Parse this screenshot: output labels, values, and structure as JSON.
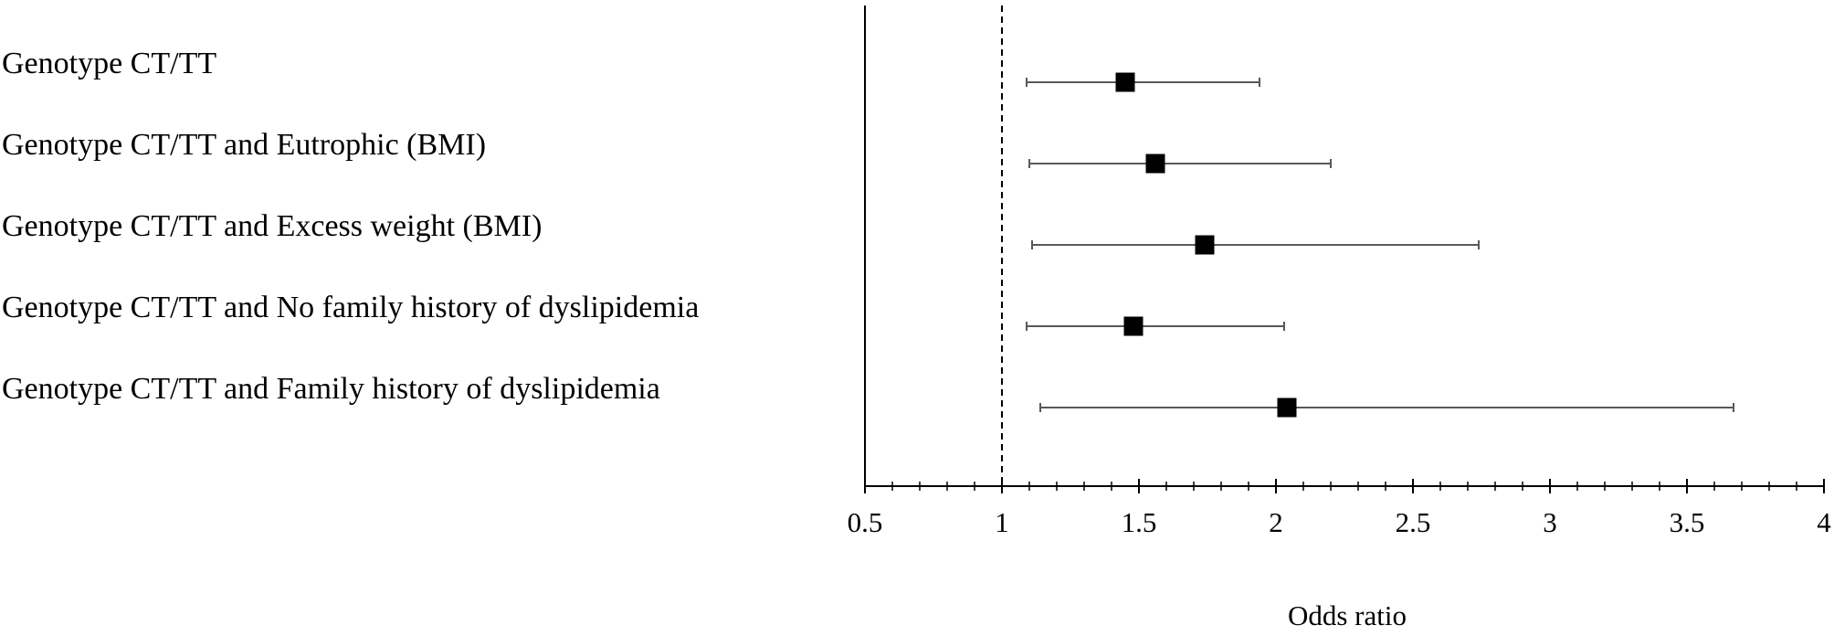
{
  "chart_data": {
    "type": "forest",
    "title": "",
    "xlabel": "Odds ratio",
    "ylabel": "",
    "xlim": [
      0.5,
      4
    ],
    "major_ticks": [
      0.5,
      1,
      1.5,
      2,
      2.5,
      3,
      3.5,
      4
    ],
    "tick_labels": [
      "0.5",
      "1",
      "1.5",
      "2",
      "2.5",
      "3",
      "3.5",
      "4"
    ],
    "minor_tick_step": 0.1,
    "reference_line": 1,
    "grid": false,
    "legend": "none",
    "marker": "square",
    "colors": {
      "marker": "#000000",
      "whisker": "#595959",
      "axis": "#000000",
      "reference": "#000000"
    },
    "rows": [
      {
        "label": "Genotype CT/TT",
        "or": 1.45,
        "lower": 1.09,
        "upper": 1.94
      },
      {
        "label": "Genotype CT/TT and Eutrophic (BMI)",
        "or": 1.56,
        "lower": 1.1,
        "upper": 2.2
      },
      {
        "label": "Genotype CT/TT and Excess weight (BMI)",
        "or": 1.74,
        "lower": 1.11,
        "upper": 2.74
      },
      {
        "label": "Genotype CT/TT and No family history of dyslipidemia",
        "or": 1.48,
        "lower": 1.09,
        "upper": 2.03
      },
      {
        "label": "Genotype CT/TT and Family history of dyslipidemia",
        "or": 2.04,
        "lower": 1.14,
        "upper": 3.67
      }
    ]
  }
}
